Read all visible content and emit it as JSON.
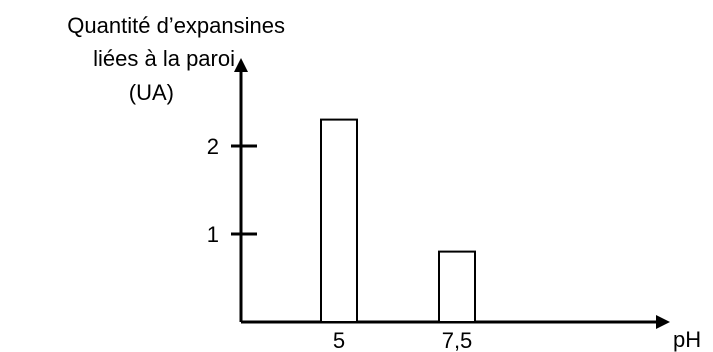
{
  "chart_data": {
    "type": "bar",
    "title": "",
    "ylabel": "Quantité d’expansines liées à la paroi (UA)",
    "ylabel_lines": [
      "Quantité d’expansines",
      "liées à la paroi",
      "(UA)"
    ],
    "xlabel": "pH",
    "categories": [
      "5",
      "7,5"
    ],
    "values": [
      2.3,
      0.8
    ],
    "ylim": [
      0,
      3
    ],
    "yticks": [
      1,
      2
    ],
    "ytick_labels": [
      "1",
      "2"
    ],
    "grid": false,
    "legend": "none",
    "bar_fill": "#ffffff",
    "bar_stroke": "#000000"
  }
}
